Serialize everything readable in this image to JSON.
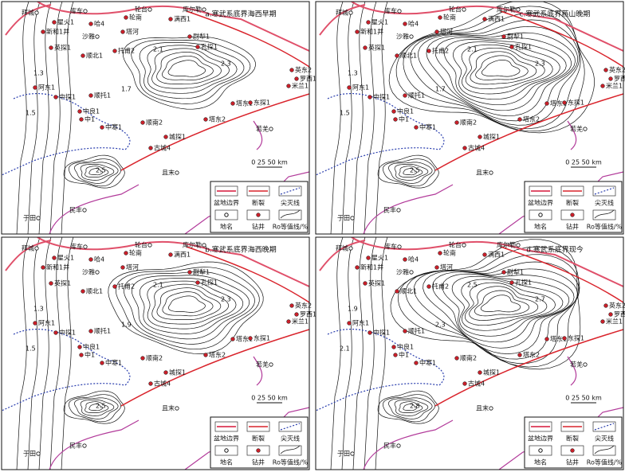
{
  "legend": {
    "items": [
      "盆地边界",
      "断裂",
      "尖灭线",
      "地名",
      "钻井",
      "Ro等值线/%"
    ],
    "scale": "0 25 50 km"
  },
  "places": [
    "拜城",
    "库车",
    "沙雅",
    "轮台",
    "库尔勒",
    "若羌",
    "且末",
    "于田",
    "民丰"
  ],
  "panels": [
    {
      "title": "a.寒武系底界海西早期",
      "wells": [
        "星火1",
        "新和1井",
        "哈4",
        "轮南",
        "塔河",
        "满西1",
        "英探1",
        "顺北1",
        "托甫2",
        "尉犁1",
        "孔探1",
        "英东2",
        "罗西1",
        "米兰1",
        "阿东1",
        "中探1",
        "顺托1",
        "塔东1",
        "东探1",
        "中良1",
        "中1",
        "中寒1",
        "顺南2",
        "塔东2",
        "城探1",
        "古城4"
      ],
      "contour_labels": [
        1.3,
        1.5,
        1.7,
        2.1,
        2.3,
        2.5
      ]
    },
    {
      "title": "c.寒武系底界燕山晚期",
      "wells": [
        "星火1",
        "新和1井",
        "哈4",
        "轮南",
        "塔河",
        "满西1",
        "英探1",
        "顺北1",
        "托甫2",
        "尉犁1",
        "孔探1",
        "英东2",
        "罗西1",
        "米兰1",
        "阿东1",
        "中探1",
        "顺托1",
        "塔东1",
        "东探1",
        "中良1",
        "中1",
        "中寒1",
        "顺南2",
        "塔东2",
        "城探1",
        "古城4"
      ],
      "contour_labels": [
        1.3,
        1.5,
        1.7,
        2.1,
        2.3,
        2.5
      ]
    },
    {
      "title": "b.寒武系底界海西晚期",
      "wells": [
        "星火1",
        "新和1井",
        "哈4",
        "轮南",
        "塔河",
        "满西1",
        "英探1",
        "顺北1",
        "托甫2",
        "尉犁1",
        "孔探1",
        "英东2",
        "罗西1",
        "米兰1",
        "阿东1",
        "中探1",
        "顺托1",
        "塔东1",
        "东探1",
        "中良1",
        "中1",
        "中寒1",
        "顺南2",
        "塔东2",
        "城探1",
        "古城4"
      ],
      "contour_labels": [
        1.3,
        1.5,
        1.9,
        2.1,
        2.3,
        2.5
      ]
    },
    {
      "title": "d.寒武系底界现今",
      "wells": [
        "星火1",
        "新和1井",
        "哈4",
        "轮南",
        "塔河",
        "满西1",
        "英探1",
        "顺北1",
        "托甫2",
        "尉犁1",
        "孔探1",
        "英东2",
        "罗西1",
        "米兰1",
        "阿东1",
        "中探1",
        "顺托1",
        "塔东1",
        "东探1",
        "中良1",
        "中1",
        "中寒1",
        "顺南2",
        "塔东2",
        "城探1",
        "古城4"
      ],
      "contour_labels": [
        1.9,
        2.1,
        2.3,
        2.5,
        2.7,
        2.8
      ]
    }
  ]
}
